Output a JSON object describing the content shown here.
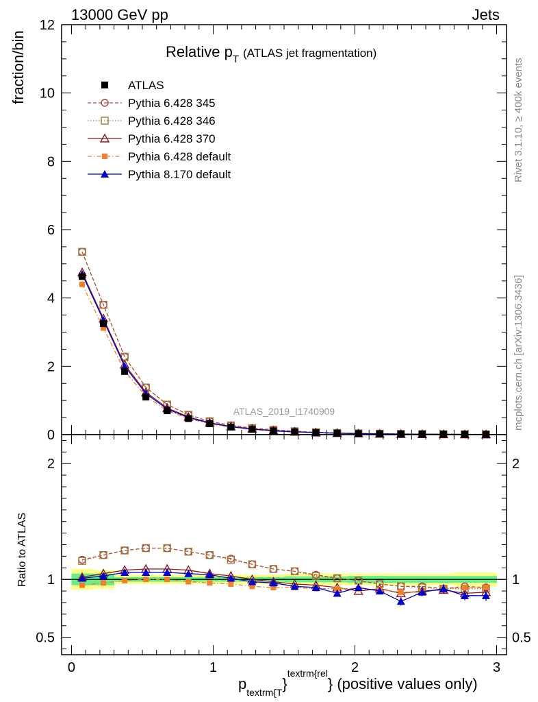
{
  "header": {
    "energy": "13000 GeV pp",
    "process": "Jets",
    "title_main": "Relative p",
    "title_sub": "T",
    "title_paren": "(ATLAS jet fragmentation)",
    "analysis_tag": "ATLAS_2019_I1740909",
    "side_rivet": "Rivet 3.1.10, ≥ 400k events",
    "side_mcplots": "mcplots.cern.ch [arXiv:1306.3436]"
  },
  "axes": {
    "main_ylabel": "fraction/bin",
    "ratio_ylabel": "Ratio to ATLAS",
    "xlabel_p": "p",
    "xlabel_sub": "textrm{T",
    "xlabel_brace": "}",
    "xlabel_sup": "textrm{rel",
    "xlabel_rest": "} (positive values only)"
  },
  "chart_data": {
    "type": "line",
    "x_range": [
      -0.07,
      3.07
    ],
    "main_ylim": [
      0,
      12
    ],
    "ratio_ylim": [
      0.35,
      2.25
    ],
    "x_ticks": [
      0,
      1,
      2,
      3
    ],
    "main_y_ticks": [
      0,
      2,
      4,
      6,
      8,
      10,
      12
    ],
    "ratio_y_ticks": [
      0.5,
      1,
      2
    ],
    "x_tick_labels": [
      "0",
      "1",
      "2",
      "3"
    ],
    "main_y_tick_labels": [
      "0",
      "2",
      "4",
      "6",
      "8",
      "10",
      "12"
    ],
    "ratio_y_tick_labels": [
      "0.5",
      "1",
      "2"
    ],
    "x": [
      0.075,
      0.225,
      0.375,
      0.525,
      0.675,
      0.825,
      0.975,
      1.125,
      1.275,
      1.425,
      1.575,
      1.725,
      1.875,
      2.025,
      2.175,
      2.325,
      2.475,
      2.625,
      2.775,
      2.925
    ],
    "legend_position": "top-left",
    "series": [
      {
        "name": "ATLAS",
        "color": "#000000",
        "line": "none",
        "marker": "filled-square",
        "values": [
          4.63,
          3.25,
          1.85,
          1.1,
          0.7,
          0.47,
          0.32,
          0.22,
          0.155,
          0.11,
          0.08,
          0.058,
          0.042,
          0.031,
          0.024,
          0.018,
          0.014,
          0.011,
          0.009,
          0.007
        ],
        "ratio": [
          1,
          1,
          1,
          1,
          1,
          1,
          1,
          1,
          1,
          1,
          1,
          1,
          1,
          1,
          1,
          1,
          1,
          1,
          1,
          1
        ]
      },
      {
        "name": "Pythia 6.428 345",
        "color": "#b3403a",
        "line": "5,3",
        "marker": "open-circle",
        "values": [
          5.35,
          3.8,
          2.28,
          1.38,
          0.88,
          0.58,
          0.39,
          0.27,
          0.19,
          0.14,
          0.1,
          0.07,
          0.05,
          0.037,
          0.028,
          0.02,
          0.016,
          0.012,
          0.01,
          0.008
        ],
        "ratio": [
          1.17,
          1.21,
          1.25,
          1.27,
          1.27,
          1.24,
          1.21,
          1.18,
          1.13,
          1.09,
          1.07,
          1.04,
          1.01,
          0.99,
          0.96,
          0.94,
          0.94,
          0.92,
          0.94,
          0.93
        ]
      },
      {
        "name": "Pythia 6.428 346",
        "color": "#a0743c",
        "line": "1.5,2.5",
        "marker": "open-square",
        "values": [
          5.35,
          3.8,
          2.28,
          1.38,
          0.88,
          0.58,
          0.39,
          0.27,
          0.19,
          0.14,
          0.1,
          0.07,
          0.05,
          0.037,
          0.028,
          0.02,
          0.016,
          0.012,
          0.01,
          0.008
        ],
        "ratio": [
          1.16,
          1.21,
          1.25,
          1.27,
          1.27,
          1.24,
          1.21,
          1.17,
          1.13,
          1.09,
          1.07,
          1.03,
          1.01,
          0.99,
          0.96,
          0.94,
          0.93,
          0.92,
          0.92,
          0.92
        ]
      },
      {
        "name": "Pythia 6.428 370",
        "color": "#8b1a1a",
        "line": "solid",
        "marker": "open-triangle",
        "values": [
          4.75,
          3.4,
          2.05,
          1.24,
          0.78,
          0.52,
          0.35,
          0.24,
          0.17,
          0.12,
          0.085,
          0.062,
          0.045,
          0.033,
          0.025,
          0.019,
          0.015,
          0.012,
          0.009,
          0.007
        ],
        "ratio": [
          1.02,
          1.05,
          1.08,
          1.09,
          1.09,
          1.08,
          1.05,
          1.03,
          1.0,
          0.98,
          0.96,
          0.95,
          0.93,
          0.9,
          0.92,
          0.88,
          0.9,
          0.91,
          0.88,
          0.89
        ]
      },
      {
        "name": "Pythia 6.428 default",
        "color": "#f07e2a",
        "line": "6,3,1.5,3",
        "marker": "filled-square-small",
        "values": [
          4.4,
          3.12,
          1.86,
          1.12,
          0.71,
          0.47,
          0.32,
          0.22,
          0.15,
          0.105,
          0.076,
          0.055,
          0.04,
          0.03,
          0.023,
          0.017,
          0.013,
          0.01,
          0.008,
          0.0065
        ],
        "ratio": [
          0.95,
          0.97,
          0.99,
          1.0,
          1.0,
          0.98,
          0.97,
          0.96,
          0.94,
          0.93,
          0.93,
          0.92,
          0.92,
          0.92,
          0.91,
          0.89,
          0.89,
          0.92,
          0.93,
          0.93
        ]
      },
      {
        "name": "Pythia 8.170 default",
        "color": "#0000cc",
        "line": "solid",
        "marker": "filled-triangle",
        "values": [
          4.7,
          3.35,
          2.0,
          1.2,
          0.75,
          0.5,
          0.34,
          0.23,
          0.16,
          0.11,
          0.08,
          0.058,
          0.04,
          0.03,
          0.023,
          0.016,
          0.013,
          0.01,
          0.008,
          0.006
        ],
        "ratio": [
          1.01,
          1.03,
          1.06,
          1.06,
          1.06,
          1.05,
          1.04,
          1.01,
          0.98,
          0.97,
          0.94,
          0.93,
          0.88,
          0.93,
          0.9,
          0.81,
          0.89,
          0.92,
          0.86,
          0.86
        ],
        "ratio_err": [
          0.01,
          0.01,
          0.01,
          0.01,
          0.01,
          0.01,
          0.01,
          0.015,
          0.015,
          0.02,
          0.02,
          0.02,
          0.025,
          0.03,
          0.03,
          0.035,
          0.035,
          0.04,
          0.04,
          0.045
        ]
      }
    ],
    "ratio_band_inner": [
      0.05,
      0.05,
      0.02,
      0.02,
      0.02,
      0.02,
      0.02,
      0.02,
      0.02,
      0.02,
      0.025,
      0.025,
      0.025,
      0.03,
      0.03,
      0.03,
      0.03,
      0.03,
      0.03,
      0.03
    ],
    "ratio_band_outer": [
      0.09,
      0.08,
      0.04,
      0.04,
      0.04,
      0.04,
      0.04,
      0.04,
      0.04,
      0.04,
      0.05,
      0.05,
      0.05,
      0.05,
      0.05,
      0.05,
      0.05,
      0.05,
      0.06,
      0.06
    ],
    "band_colors": {
      "inner": "#66ee88",
      "outer": "#ffff88"
    }
  }
}
